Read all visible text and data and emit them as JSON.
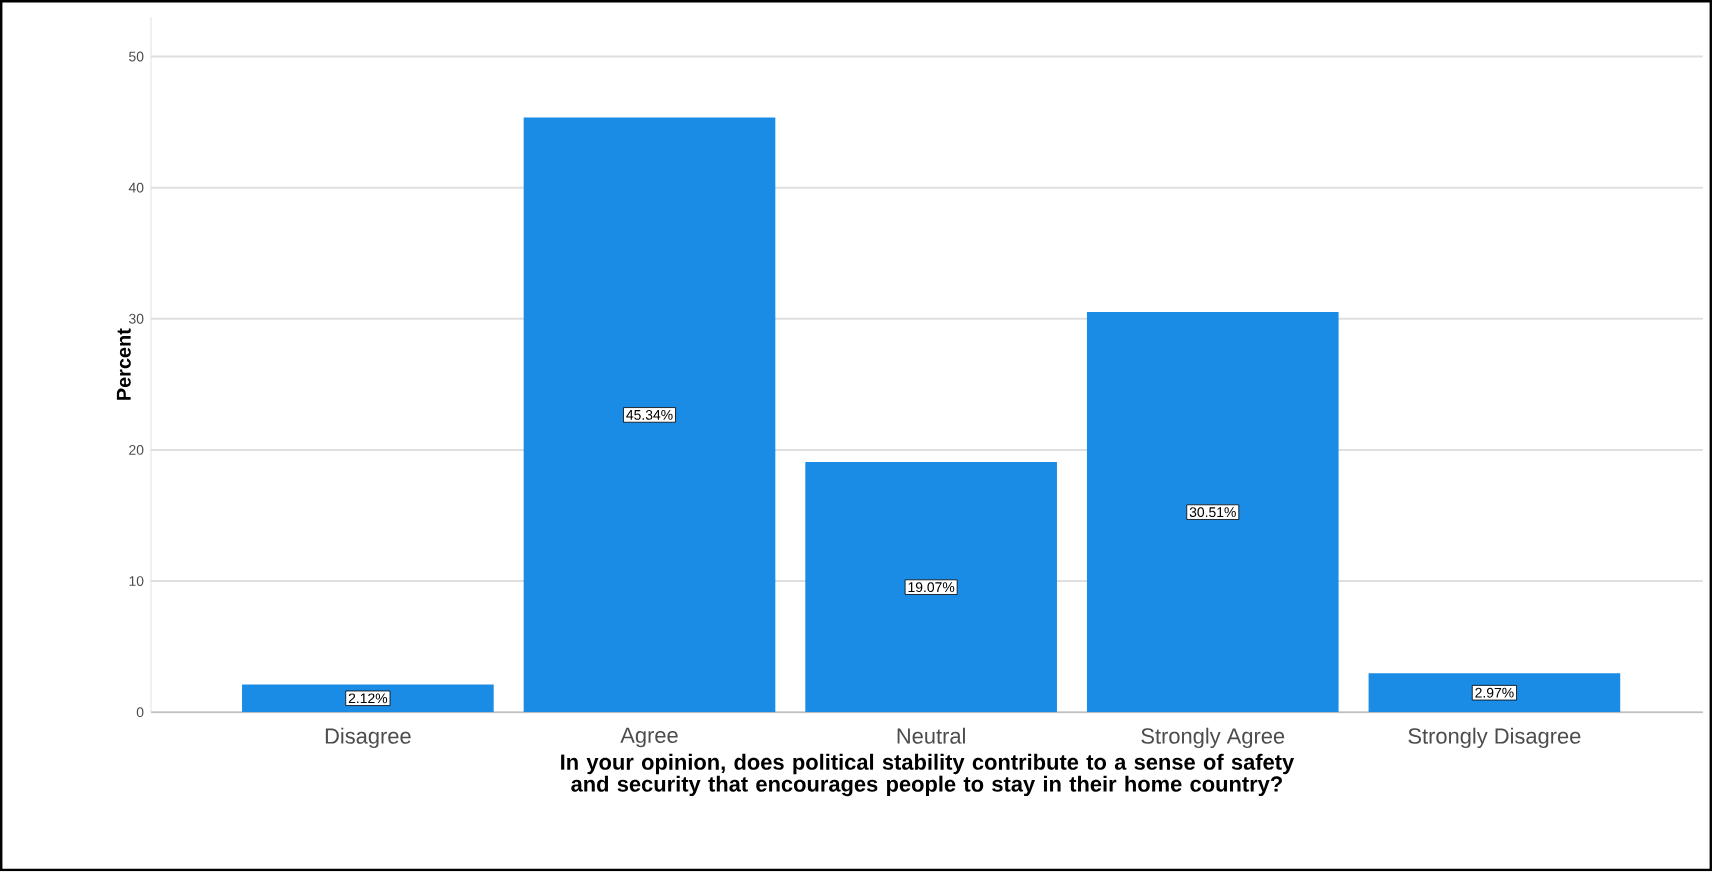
{
  "chart_data": {
    "type": "bar",
    "xlabel": "In your opinion, does political stability contribute to a sense of safety and security that encourages people to stay in their home country?",
    "ylabel": "Percent",
    "categories": [
      "Disagree",
      "Agree",
      "Neutral",
      "Strongly Agree",
      "Strongly Disagree"
    ],
    "values": [
      2.12,
      45.34,
      19.07,
      30.51,
      2.97
    ],
    "value_labels": [
      "2.12%",
      "45.34%",
      "19.07%",
      "30.51%",
      "2.97%"
    ],
    "color": "#1a8ce6",
    "ylim": [
      0,
      53
    ],
    "yticks": [
      0,
      10,
      20,
      30,
      40,
      50
    ],
    "grid": "y"
  }
}
